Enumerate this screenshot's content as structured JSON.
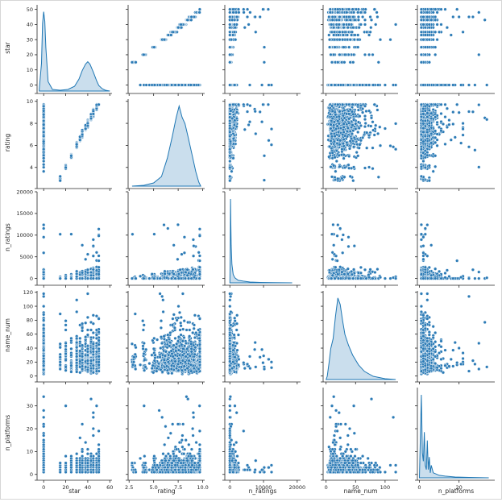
{
  "chart_data": {
    "type": "pairplot",
    "title": "",
    "variables": [
      "star",
      "rating",
      "n_ratings",
      "name_num",
      "n_platforms"
    ],
    "color": "#1f77b4",
    "axes": {
      "star": {
        "range": [
          -4,
          60
        ],
        "xlim": [
          -6,
          62
        ],
        "ticks": [
          0,
          20,
          40,
          60
        ],
        "tick_labels": [
          "0",
          "20",
          "40",
          "60"
        ],
        "ylim": [
          -4,
          53
        ],
        "yticks": [
          0,
          10,
          20,
          30,
          40,
          50
        ],
        "ytick_labels": [
          "0",
          "10",
          "20",
          "30",
          "40",
          "50"
        ]
      },
      "rating": {
        "xlim": [
          2.4,
          10.2
        ],
        "ticks": [
          2.5,
          5.0,
          7.5,
          10.0
        ],
        "tick_labels": [
          "2.5",
          "5.0",
          "7.5",
          "10.0"
        ],
        "ylim": [
          2.3,
          10.2
        ],
        "yticks": [
          4,
          6,
          8,
          10
        ],
        "ytick_labels": [
          "4",
          "6",
          "8",
          "10"
        ]
      },
      "n_ratings": {
        "xlim": [
          -1500,
          21000
        ],
        "ticks": [
          0,
          10000,
          20000
        ],
        "tick_labels": [
          "0",
          "10000",
          "20000"
        ],
        "ylim": [
          -1000,
          20000
        ],
        "yticks": [
          0,
          5000,
          10000,
          15000,
          20000
        ],
        "ytick_labels": [
          "0",
          "5000",
          "10000",
          "15000",
          "20000"
        ]
      },
      "name_num": {
        "xlim": [
          -5,
          122
        ],
        "ticks": [
          0,
          50,
          100
        ],
        "tick_labels": [
          "0",
          "50",
          "100"
        ],
        "ylim": [
          -5,
          122
        ],
        "yticks": [
          0,
          20,
          40,
          60,
          80,
          100,
          120
        ],
        "ytick_labels": [
          "0",
          "20",
          "40",
          "60",
          "80",
          "100",
          "120"
        ]
      },
      "n_platforms": {
        "xlim": [
          -1,
          38
        ],
        "ticks": [
          0,
          20
        ],
        "tick_labels": [
          "0",
          "20"
        ],
        "ylim": [
          -1.5,
          38
        ],
        "yticks": [
          0,
          10,
          20,
          30
        ],
        "ytick_labels": [
          "0",
          "10",
          "20",
          "30"
        ]
      }
    },
    "diagonal_kde": {
      "star": {
        "x": [
          -4,
          -2,
          -1,
          0,
          1,
          2,
          4,
          8,
          15,
          22,
          28,
          32,
          35,
          38,
          40,
          42,
          45,
          48,
          50,
          53,
          56,
          60
        ],
        "y": [
          0.02,
          0.35,
          0.85,
          1.0,
          0.88,
          0.55,
          0.12,
          0.02,
          0.01,
          0.02,
          0.06,
          0.15,
          0.26,
          0.34,
          0.37,
          0.34,
          0.24,
          0.13,
          0.07,
          0.03,
          0.01,
          0.0
        ]
      },
      "rating": {
        "x": [
          2.8,
          4.0,
          5.0,
          5.8,
          6.4,
          6.9,
          7.3,
          7.6,
          7.9,
          8.2,
          8.5,
          8.9,
          9.3,
          9.6,
          9.8
        ],
        "y": [
          0.0,
          0.01,
          0.04,
          0.12,
          0.35,
          0.62,
          0.86,
          1.0,
          0.86,
          0.78,
          0.62,
          0.4,
          0.18,
          0.05,
          0.0
        ]
      },
      "n_ratings": {
        "x": [
          0,
          100,
          200,
          300,
          400,
          600,
          1000,
          1500,
          2500,
          4000,
          6000,
          9000,
          13000,
          18500
        ],
        "y": [
          0.0,
          0.35,
          1.0,
          0.7,
          0.45,
          0.22,
          0.1,
          0.06,
          0.03,
          0.02,
          0.01,
          0.005,
          0.002,
          0.0
        ]
      },
      "name_num": {
        "x": [
          0,
          2,
          5,
          8,
          12,
          16,
          20,
          24,
          28,
          32,
          38,
          45,
          55,
          65,
          80,
          100,
          118
        ],
        "y": [
          0.0,
          0.04,
          0.2,
          0.38,
          0.5,
          0.78,
          1.0,
          0.92,
          0.72,
          0.55,
          0.42,
          0.3,
          0.18,
          0.1,
          0.04,
          0.01,
          0.0
        ]
      },
      "n_platforms": {
        "x": [
          0,
          0.5,
          1,
          1.5,
          2,
          2.5,
          3,
          3.5,
          4,
          4.5,
          5,
          5.5,
          6,
          7,
          8,
          10,
          13,
          18,
          25,
          35
        ],
        "y": [
          0.0,
          0.5,
          1.0,
          0.3,
          0.2,
          0.55,
          0.15,
          0.1,
          0.45,
          0.1,
          0.25,
          0.06,
          0.15,
          0.06,
          0.05,
          0.03,
          0.02,
          0.01,
          0.005,
          0.0
        ]
      }
    }
  }
}
